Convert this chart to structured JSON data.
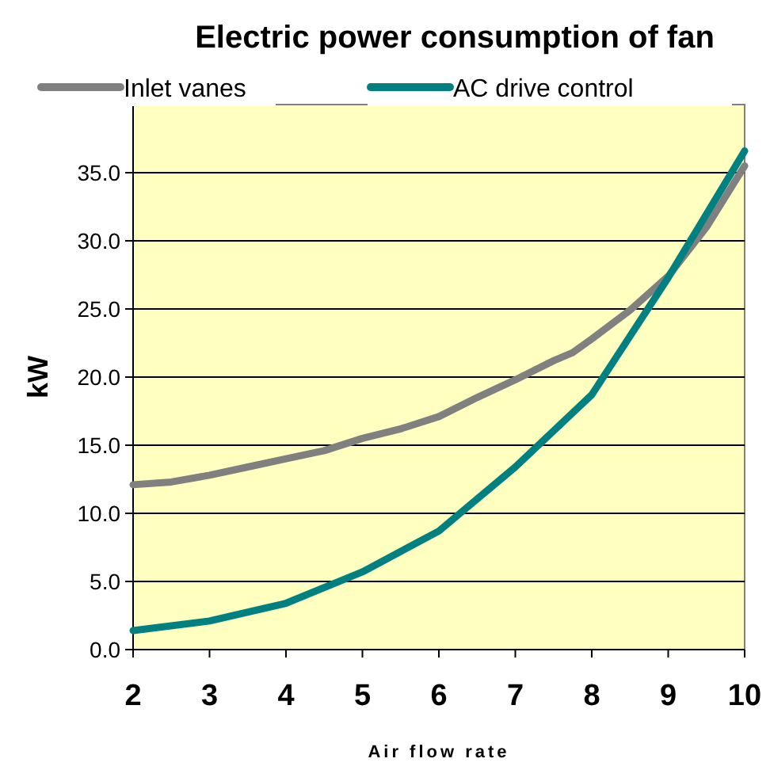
{
  "chart_data": {
    "type": "line",
    "title": "Electric power consumption of fan",
    "xlabel": "Air flow rate",
    "ylabel": "kW",
    "xlim": [
      2,
      10
    ],
    "xticks": [
      2,
      3,
      4,
      5,
      6,
      7,
      8,
      9,
      10
    ],
    "ylim": [
      0,
      40
    ],
    "yticks": [
      {
        "value": 0,
        "label": "0.0"
      },
      {
        "value": 5,
        "label": "5.0"
      },
      {
        "value": 10,
        "label": "10.0"
      },
      {
        "value": 15,
        "label": "15.0"
      },
      {
        "value": 20,
        "label": "20.0"
      },
      {
        "value": 25,
        "label": "25.0"
      },
      {
        "value": 30,
        "label": "30.0"
      },
      {
        "value": 35,
        "label": "35.0"
      }
    ],
    "grid": "y",
    "legend": "top",
    "marker": "none",
    "series": [
      {
        "name": "Inlet vanes",
        "color": "#808080",
        "x": [
          2,
          2.5,
          3,
          3.5,
          4,
          4.5,
          5,
          5.5,
          6,
          6.5,
          7,
          7.5,
          7.75,
          8,
          8.5,
          9,
          9.5,
          10
        ],
        "values": [
          12.1,
          12.3,
          12.8,
          13.4,
          14.0,
          14.6,
          15.5,
          16.2,
          17.1,
          18.5,
          19.8,
          21.2,
          21.8,
          22.8,
          24.9,
          27.4,
          31,
          35.5
        ]
      },
      {
        "name": "AC drive control",
        "color": "#008080",
        "x": [
          2,
          3,
          4,
          5,
          6,
          7,
          8,
          9,
          10
        ],
        "values": [
          1.4,
          2.1,
          3.4,
          5.7,
          8.7,
          13.4,
          18.7,
          27.3,
          36.6
        ]
      }
    ]
  }
}
